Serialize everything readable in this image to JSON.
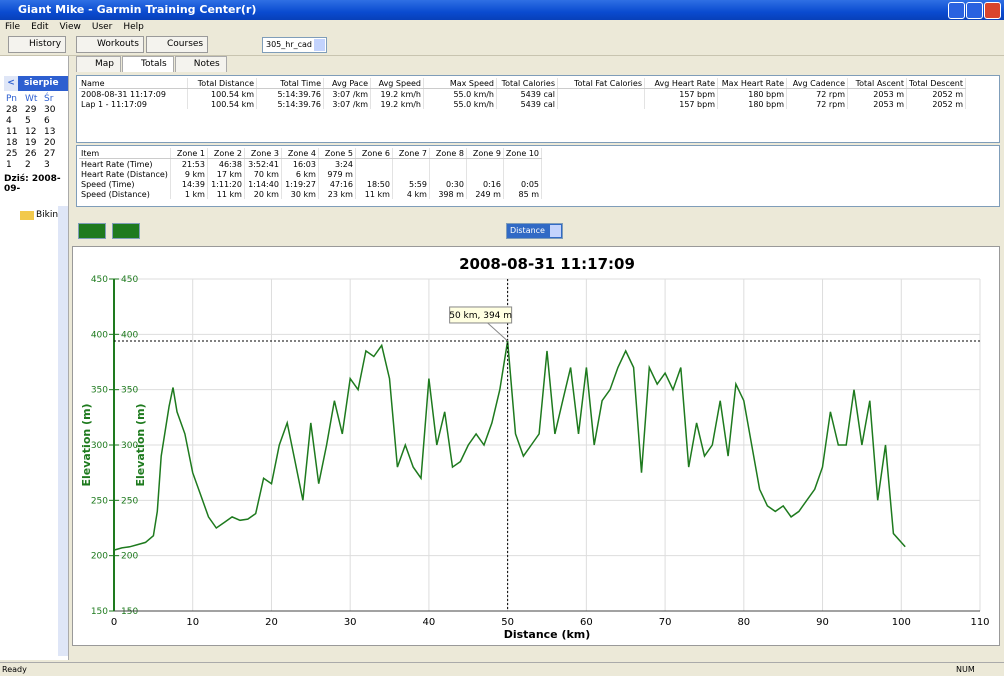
{
  "window": {
    "title": "Giant Mike - Garmin Training Center(r)"
  },
  "menu": [
    "File",
    "Edit",
    "View",
    "User",
    "Help"
  ],
  "toolbar": {
    "buttons": [
      "History",
      "Workouts",
      "Courses"
    ],
    "device": "305_hr_cad"
  },
  "calendar": {
    "month": "sierpie",
    "weekdays": [
      "Pn",
      "Wt",
      "Śr"
    ],
    "days": [
      [
        "28",
        "29",
        "30"
      ],
      [
        "4",
        "5",
        "6"
      ],
      [
        "11",
        "12",
        "13"
      ],
      [
        "18",
        "19",
        "20"
      ],
      [
        "25",
        "26",
        "27"
      ],
      [
        "1",
        "2",
        "3"
      ]
    ],
    "today": "Dziś: 2008-09-"
  },
  "tree": {
    "root": "Biking"
  },
  "tabs": [
    "Map",
    "Totals",
    "Notes"
  ],
  "totals_table": {
    "columns": [
      "Name",
      "Total Distance",
      "Total Time",
      "Avg Pace",
      "Avg Speed",
      "Max Speed",
      "Total Calories",
      "Total Fat Calories",
      "Avg Heart Rate",
      "Max Heart Rate",
      "Avg Cadence",
      "Total Ascent",
      "Total Descent"
    ],
    "rows": [
      [
        "2008-08-31 11:17:09",
        "100.54 km",
        "5:14:39.76",
        "3:07 /km",
        "19.2 km/h",
        "55.0 km/h",
        "5439 cal",
        null,
        "157 bpm",
        "180 bpm",
        "72 rpm",
        "2053 m",
        "2052 m"
      ],
      [
        "Lap 1 - 11:17:09",
        "100.54 km",
        "5:14:39.76",
        "3:07 /km",
        "19.2 km/h",
        "55.0 km/h",
        "5439 cal",
        null,
        "157 bpm",
        "180 bpm",
        "72 rpm",
        "2053 m",
        "2052 m"
      ]
    ]
  },
  "zones_table": {
    "columns": [
      "Item",
      "Zone 1",
      "Zone 2",
      "Zone 3",
      "Zone 4",
      "Zone 5",
      "Zone 6",
      "Zone 7",
      "Zone 8",
      "Zone 9",
      "Zone 10"
    ],
    "rows": [
      [
        "Heart Rate (Time)",
        "21:53",
        "46:38",
        "3:52:41",
        "16:03",
        "3:24"
      ],
      [
        "Heart Rate (Distance)",
        "9 km",
        "17 km",
        "70 km",
        "6 km",
        "979 m"
      ],
      [
        "Speed (Time)",
        "14:39",
        "1:11:20",
        "1:14:40",
        "1:19:27",
        "47:16",
        "18:50",
        "5:59",
        "0:30",
        "0:16",
        "0:05"
      ],
      [
        "Speed (Distance)",
        "1 km",
        "11 km",
        "20 km",
        "30 km",
        "23 km",
        "11 km",
        "4 km",
        "398 m",
        "249 m",
        "85 m"
      ]
    ]
  },
  "chart_toolbar": {
    "x_axis": "Distance"
  },
  "chart": {
    "type": "line",
    "title": "2008-08-31 11:17:09",
    "x_label": "Distance (km)",
    "y_label": "Elevation (m)",
    "color": "#1e7a1e",
    "xlim": [
      0,
      110
    ],
    "xticks": [
      0,
      10,
      20,
      30,
      40,
      50,
      60,
      70,
      80,
      90,
      100,
      110
    ],
    "ylim": [
      150,
      450
    ],
    "yticks": [
      150,
      200,
      250,
      300,
      350,
      400,
      450
    ],
    "x": [
      0,
      1,
      2,
      3,
      4,
      5,
      5.5,
      6,
      7,
      7.5,
      8,
      9,
      10,
      11,
      12,
      13,
      14,
      15,
      16,
      17,
      18,
      19,
      20,
      21,
      22,
      23,
      24,
      25,
      26,
      27,
      28,
      29,
      30,
      31,
      32,
      33,
      34,
      35,
      36,
      37,
      38,
      39,
      40,
      41,
      42,
      43,
      44,
      45,
      46,
      47,
      48,
      49,
      50,
      51,
      52,
      53,
      54,
      55,
      56,
      57,
      58,
      59,
      60,
      61,
      62,
      63,
      64,
      65,
      66,
      67,
      68,
      69,
      70,
      71,
      72,
      73,
      74,
      75,
      76,
      77,
      78,
      79,
      80,
      81,
      82,
      83,
      84,
      85,
      86,
      87,
      88,
      89,
      90,
      91,
      92,
      93,
      94,
      95,
      96,
      97,
      98,
      99,
      100,
      100.5
    ],
    "values": [
      205,
      207,
      208,
      210,
      212,
      218,
      240,
      290,
      335,
      352,
      330,
      310,
      275,
      255,
      235,
      225,
      230,
      235,
      232,
      233,
      238,
      270,
      265,
      300,
      320,
      285,
      250,
      320,
      265,
      300,
      340,
      310,
      360,
      350,
      385,
      380,
      390,
      360,
      280,
      300,
      280,
      270,
      360,
      300,
      330,
      280,
      285,
      300,
      310,
      300,
      320,
      350,
      394,
      310,
      290,
      300,
      310,
      385,
      310,
      340,
      370,
      310,
      370,
      300,
      340,
      350,
      370,
      385,
      370,
      275,
      370,
      355,
      365,
      350,
      370,
      280,
      320,
      290,
      300,
      340,
      290,
      355,
      340,
      300,
      260,
      245,
      240,
      245,
      235,
      240,
      250,
      260,
      280,
      330,
      300,
      300,
      350,
      300,
      340,
      250,
      300,
      220,
      212,
      208
    ],
    "grid": true,
    "cursor": {
      "x": 50,
      "y": 394
    },
    "tooltip": "50 km, 394 m"
  },
  "status": {
    "left": "Ready",
    "right": "NUM"
  }
}
